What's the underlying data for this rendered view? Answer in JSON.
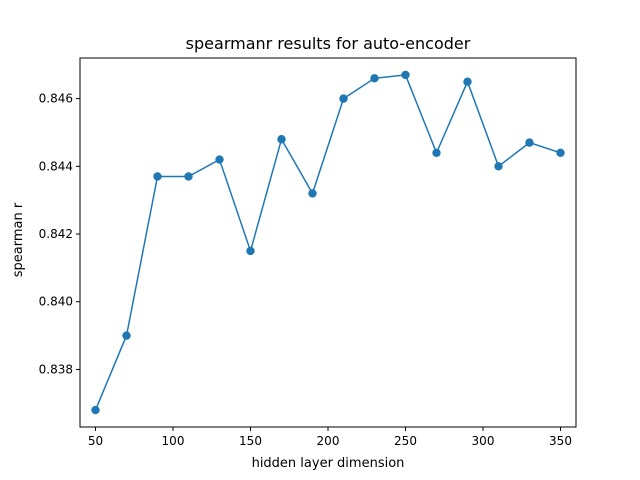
{
  "chart_data": {
    "type": "line",
    "title": "spearmanr results for auto-encoder",
    "xlabel": "hidden layer dimension",
    "ylabel": "spearman r",
    "xlim": [
      40,
      360
    ],
    "ylim": [
      0.8363,
      0.8472
    ],
    "xticks": [
      50,
      100,
      150,
      200,
      250,
      300,
      350
    ],
    "xtick_labels": [
      "50",
      "100",
      "150",
      "200",
      "250",
      "300",
      "350"
    ],
    "yticks": [
      0.838,
      0.84,
      0.842,
      0.844,
      0.846
    ],
    "ytick_labels": [
      "0.838",
      "0.840",
      "0.842",
      "0.844",
      "0.846"
    ],
    "grid": false,
    "color": "#1f77b4",
    "x": [
      50,
      70,
      90,
      110,
      130,
      150,
      170,
      190,
      210,
      230,
      250,
      270,
      290,
      310,
      330,
      350
    ],
    "y": [
      0.8368,
      0.839,
      0.8437,
      0.8437,
      0.8442,
      0.8415,
      0.8448,
      0.8432,
      0.846,
      0.8466,
      0.8467,
      0.8444,
      0.8465,
      0.844,
      0.8447,
      0.8444
    ]
  }
}
